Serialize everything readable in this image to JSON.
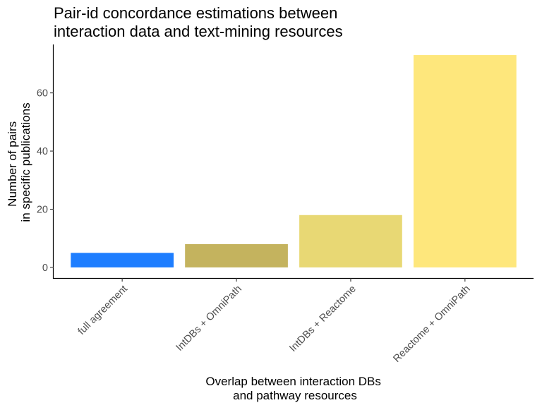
{
  "chart_data": {
    "type": "bar",
    "title": [
      "Pair-id concordance estimations between",
      "interaction data and text-mining resources"
    ],
    "xlabel": [
      "Overlap between interaction DBs",
      "and pathway resources"
    ],
    "ylabel": [
      "Number of pairs",
      "in specific publications"
    ],
    "categories": [
      "full agreement",
      "IntDBs + OmniPath",
      "IntDBs + Reactome",
      "Reactome + OmniPath"
    ],
    "values": [
      5,
      8,
      18,
      73
    ],
    "bar_colors": [
      "#1e7eff",
      "#c4b35e",
      "#e8d874",
      "#fee77c"
    ],
    "ylim": [
      -3.65,
      76.65
    ],
    "yticks": [
      0,
      20,
      40,
      60
    ],
    "grid": false,
    "legend": "none"
  }
}
